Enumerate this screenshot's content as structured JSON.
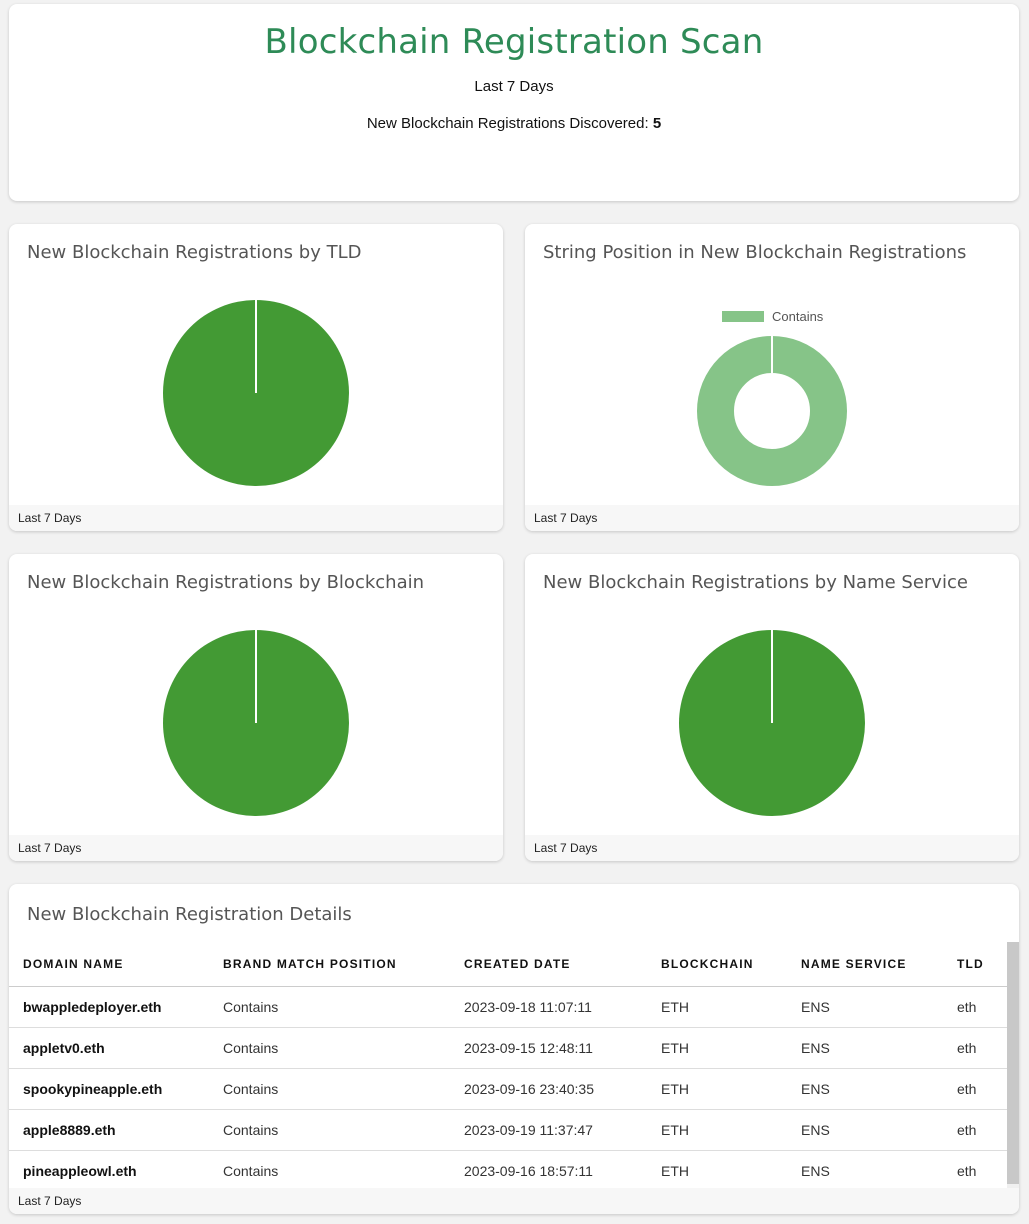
{
  "header": {
    "title": "Blockchain Registration Scan",
    "period": "Last 7 Days",
    "count_label": "New Blockchain Registrations Discovered:",
    "count_value": "5"
  },
  "charts": {
    "tld": {
      "title": "New Blockchain Registrations by TLD",
      "footer": "Last 7 Days",
      "color": "#439a34"
    },
    "position": {
      "title": "String Position in New Blockchain Registrations",
      "footer": "Last 7 Days",
      "color": "#86c488"
    },
    "blockchain": {
      "title": "New Blockchain Registrations by Blockchain",
      "footer": "Last 7 Days",
      "color": "#439a34"
    },
    "name_service": {
      "title": "New Blockchain Registrations by Name Service",
      "footer": "Last 7 Days",
      "color": "#439a34"
    }
  },
  "chart_data": [
    {
      "type": "pie",
      "title": "New Blockchain Registrations by TLD",
      "labels": [
        ""
      ],
      "values": [
        5
      ]
    },
    {
      "type": "pie",
      "title": "String Position in New Blockchain Registrations",
      "labels": [
        "Contains"
      ],
      "values": [
        5
      ],
      "legend": "top"
    },
    {
      "type": "pie",
      "title": "New Blockchain Registrations by Blockchain",
      "labels": [
        ""
      ],
      "values": [
        5
      ]
    },
    {
      "type": "pie",
      "title": "New Blockchain Registrations by Name Service",
      "labels": [
        ""
      ],
      "values": [
        5
      ]
    }
  ],
  "table": {
    "title": "New Blockchain Registration Details",
    "footer": "Last 7 Days",
    "columns": [
      "DOMAIN NAME",
      "BRAND MATCH POSITION",
      "CREATED DATE",
      "BLOCKCHAIN",
      "NAME SERVICE",
      "TLD"
    ],
    "rows": [
      [
        "bwappledeployer.eth",
        "Contains",
        "2023-09-18 11:07:11",
        "ETH",
        "ENS",
        "eth"
      ],
      [
        "appletv0.eth",
        "Contains",
        "2023-09-15 12:48:11",
        "ETH",
        "ENS",
        "eth"
      ],
      [
        "spookypineapple.eth",
        "Contains",
        "2023-09-16 23:40:35",
        "ETH",
        "ENS",
        "eth"
      ],
      [
        "apple8889.eth",
        "Contains",
        "2023-09-19 11:37:47",
        "ETH",
        "ENS",
        "eth"
      ],
      [
        "pineappleowl.eth",
        "Contains",
        "2023-09-16 18:57:11",
        "ETH",
        "ENS",
        "eth"
      ]
    ]
  }
}
